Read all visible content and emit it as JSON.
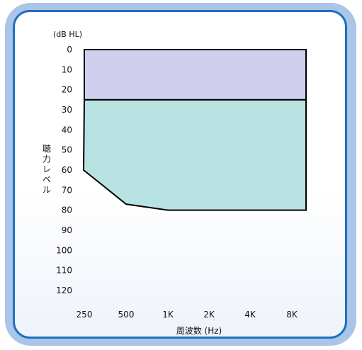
{
  "chart_data": {
    "type": "area",
    "unit_label": "(dB HL)",
    "ylabel": "聴力レベル",
    "xlabel": "周波数 (Hz)",
    "x_categories": [
      "250",
      "500",
      "1K",
      "2K",
      "4K",
      "8K"
    ],
    "y_ticks": [
      0,
      10,
      20,
      30,
      40,
      50,
      60,
      70,
      80,
      90,
      100,
      110,
      120
    ],
    "ylim": [
      0,
      120
    ],
    "y_inverted": true,
    "regions": [
      {
        "color": "#d0cfee",
        "points": [
          [
            "250",
            0
          ],
          [
            "8K",
            0
          ],
          [
            "8K",
            25
          ],
          [
            "250",
            25
          ]
        ]
      },
      {
        "color": "#b8e2e2",
        "points": [
          [
            "250",
            25
          ],
          [
            "8K",
            25
          ],
          [
            "8K",
            80
          ],
          [
            "1K",
            80
          ],
          [
            "500",
            77
          ],
          [
            "250",
            60
          ]
        ]
      }
    ],
    "grid": false
  }
}
